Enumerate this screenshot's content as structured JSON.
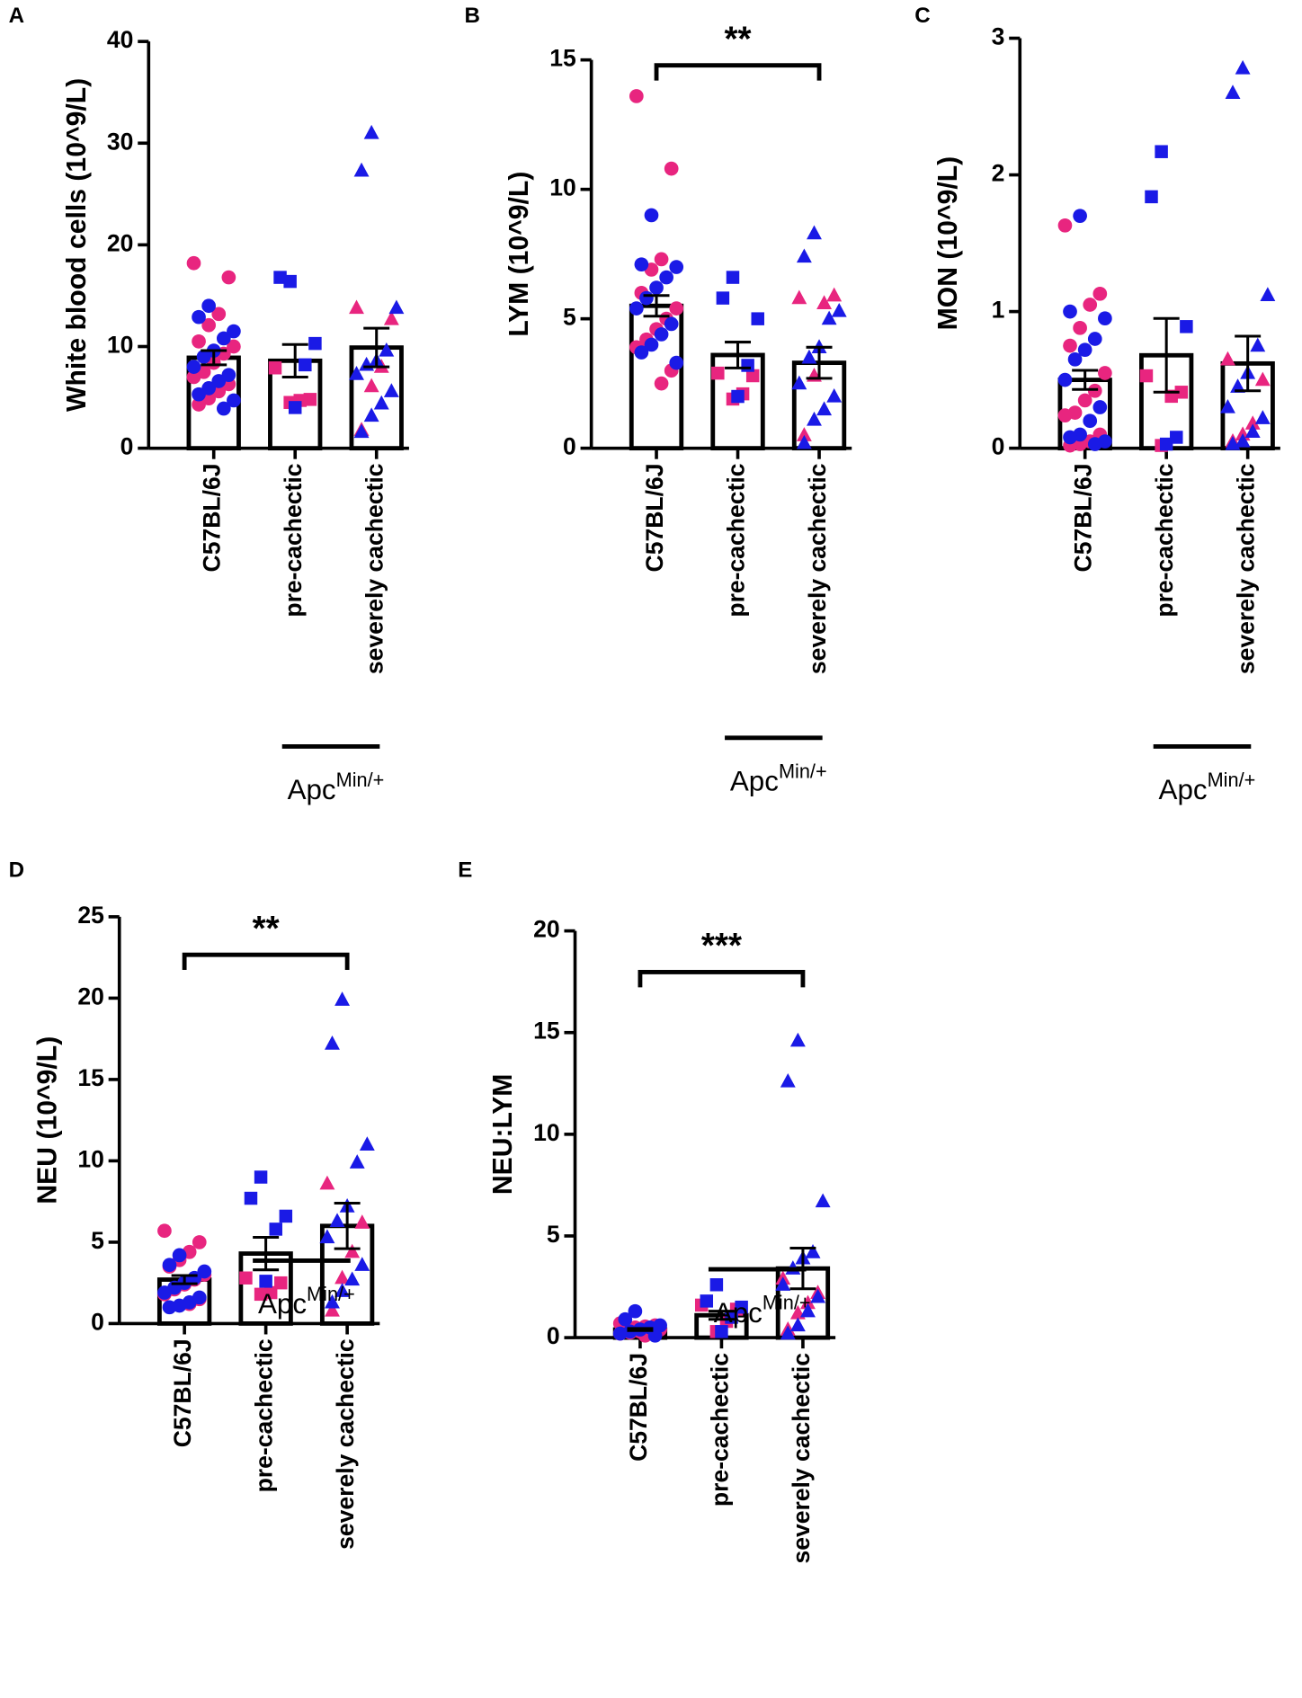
{
  "chart_data": [
    {
      "type": "bar",
      "panel": "A",
      "ylabel": "White blood cells (10^9/L)",
      "categories": [
        "C57BL/6J",
        "pre-cachectic",
        "severely cachectic"
      ],
      "values": [
        8.9,
        8.6,
        9.9
      ],
      "errors": [
        0.7,
        1.6,
        1.9
      ],
      "ylim": [
        0,
        40
      ],
      "yticks": [
        0,
        10,
        20,
        30,
        40
      ],
      "group_label": "Apc",
      "group_label_sup": "Min/+",
      "markers": [
        "circle",
        "square",
        "triangle"
      ],
      "point_series": [
        {
          "color": "#e8257f",
          "values": [
            [
              18.2,
              16.8,
              13.2,
              12.1,
              10.5,
              10.0,
              9.3,
              8.4,
              7.5,
              7.0,
              6.3,
              5.6,
              4.9,
              4.3
            ],
            [
              7.9,
              4.8,
              4.7,
              4.5
            ],
            [
              13.8,
              12.7,
              8.0,
              6.1,
              1.8
            ]
          ]
        },
        {
          "color": "#1a1ae6",
          "values": [
            [
              14.0,
              12.9,
              11.5,
              10.8,
              9.6,
              9.0,
              8.0,
              7.2,
              6.6,
              5.9,
              5.3,
              4.7,
              3.9
            ],
            [
              16.4,
              16.8,
              10.3,
              8.2,
              4.0
            ],
            [
              31.0,
              27.3,
              13.8,
              9.6,
              8.6,
              8.2,
              7.3,
              5.6,
              4.4,
              3.2,
              1.6
            ]
          ]
        }
      ]
    },
    {
      "type": "bar",
      "panel": "B",
      "ylabel": "LYM (10^9/L)",
      "categories": [
        "C57BL/6J",
        "pre-cachectic",
        "severely cachectic"
      ],
      "values": [
        5.5,
        3.6,
        3.3
      ],
      "errors": [
        0.4,
        0.5,
        0.6
      ],
      "ylim": [
        0,
        15
      ],
      "yticks": [
        0,
        5,
        10,
        15
      ],
      "group_label": "Apc",
      "group_label_sup": "Min/+",
      "significance": "**",
      "markers": [
        "circle",
        "square",
        "triangle"
      ],
      "point_series": [
        {
          "color": "#e8257f",
          "values": [
            [
              13.6,
              10.8,
              7.3,
              6.9,
              6.0,
              5.4,
              5.0,
              4.6,
              4.2,
              3.9,
              3.0,
              2.5
            ],
            [
              2.9,
              2.8,
              2.1,
              1.9
            ],
            [
              5.8,
              5.9,
              5.6,
              2.8,
              0.5
            ]
          ]
        },
        {
          "color": "#1a1ae6",
          "values": [
            [
              9.0,
              7.1,
              7.0,
              6.6,
              6.2,
              5.8,
              5.4,
              4.8,
              4.4,
              4.0,
              3.7,
              3.3
            ],
            [
              6.6,
              5.8,
              5.0,
              3.2,
              2.0
            ],
            [
              8.3,
              7.4,
              5.3,
              5.0,
              3.9,
              3.5,
              2.5,
              2.0,
              1.5,
              1.1,
              0.2
            ]
          ]
        }
      ]
    },
    {
      "type": "bar",
      "panel": "C",
      "ylabel": "MON (10^9/L)",
      "categories": [
        "C57BL/6J",
        "pre-cachectic",
        "severely cachectic"
      ],
      "values": [
        0.5,
        0.68,
        0.62
      ],
      "errors": [
        0.07,
        0.27,
        0.2
      ],
      "ylim": [
        0,
        3
      ],
      "yticks": [
        0,
        1,
        2,
        3
      ],
      "group_label": "Apc",
      "group_label_sup": "Min/+",
      "markers": [
        "circle",
        "square",
        "triangle"
      ],
      "point_series": [
        {
          "color": "#e8257f",
          "values": [
            [
              1.63,
              1.13,
              1.05,
              0.88,
              0.75,
              0.55,
              0.42,
              0.35,
              0.26,
              0.24,
              0.1,
              0.05,
              0.03,
              0.02
            ],
            [
              0.53,
              0.41,
              0.38,
              0.02
            ],
            [
              0.65,
              0.5,
              0.18,
              0.1,
              0.05
            ]
          ]
        },
        {
          "color": "#1a1ae6",
          "values": [
            [
              1.7,
              1.0,
              0.95,
              0.8,
              0.72,
              0.65,
              0.5,
              0.3,
              0.2,
              0.1,
              0.08,
              0.05,
              0.03
            ],
            [
              2.17,
              1.84,
              0.89,
              0.08,
              0.03
            ],
            [
              2.78,
              2.6,
              1.12,
              0.75,
              0.55,
              0.45,
              0.3,
              0.22,
              0.12,
              0.05,
              0.03
            ]
          ]
        }
      ]
    },
    {
      "type": "bar",
      "panel": "D",
      "ylabel": "NEU (10^9/L)",
      "categories": [
        "C57BL/6J",
        "pre-cachectic",
        "severely cachectic"
      ],
      "values": [
        2.7,
        4.3,
        6.0
      ],
      "errors": [
        0.25,
        1.0,
        1.4
      ],
      "ylim": [
        0,
        25
      ],
      "yticks": [
        0,
        5,
        10,
        15,
        20,
        25
      ],
      "group_label": "Apc",
      "group_label_sup": "Min/+",
      "significance": "**",
      "markers": [
        "circle",
        "square",
        "triangle"
      ],
      "point_series": [
        {
          "color": "#e8257f",
          "values": [
            [
              5.7,
              5.0,
              4.4,
              3.9,
              3.5,
              3.0,
              2.7,
              2.4,
              2.1,
              1.8,
              1.5,
              1.2
            ],
            [
              2.8,
              2.5,
              1.9,
              1.8
            ],
            [
              8.6,
              6.2,
              4.4,
              2.8,
              0.8
            ]
          ]
        },
        {
          "color": "#1a1ae6",
          "values": [
            [
              4.2,
              3.6,
              3.2,
              2.8,
              2.5,
              2.2,
              1.9,
              1.6,
              1.3,
              1.1,
              1.0
            ],
            [
              9.0,
              7.7,
              6.6,
              5.8,
              2.6
            ],
            [
              19.9,
              17.2,
              11.0,
              9.9,
              7.2,
              6.3,
              5.3,
              3.6,
              2.7,
              2.0,
              1.3
            ]
          ]
        }
      ]
    },
    {
      "type": "bar",
      "panel": "E",
      "ylabel": "NEU:LYM",
      "categories": [
        "C57BL/6J",
        "pre-cachectic",
        "severely cachectic"
      ],
      "values": [
        0.4,
        1.1,
        3.4
      ],
      "errors": [
        0.05,
        0.2,
        1.0
      ],
      "ylim": [
        0,
        20
      ],
      "yticks": [
        0,
        5,
        10,
        15,
        20
      ],
      "group_label": "Apc",
      "group_label_sup": "Min/+",
      "significance": "***",
      "markers": [
        "circle",
        "square",
        "triangle"
      ],
      "point_series": [
        {
          "color": "#e8257f",
          "values": [
            [
              0.7,
              0.6,
              0.55,
              0.5,
              0.45,
              0.4,
              0.35,
              0.3,
              0.25,
              0.2,
              0.15,
              0.1
            ],
            [
              1.6,
              1.4,
              0.8,
              0.3
            ],
            [
              2.9,
              2.2,
              1.7,
              1.2,
              0.4
            ]
          ]
        },
        {
          "color": "#1a1ae6",
          "values": [
            [
              1.3,
              0.9,
              0.6,
              0.5,
              0.4,
              0.3,
              0.2,
              0.1
            ],
            [
              2.6,
              1.8,
              1.5,
              1.0,
              0.3
            ],
            [
              14.6,
              12.6,
              6.7,
              4.2,
              3.9,
              3.4,
              2.6,
              2.0,
              1.3,
              0.6,
              0.2
            ]
          ]
        }
      ]
    }
  ]
}
